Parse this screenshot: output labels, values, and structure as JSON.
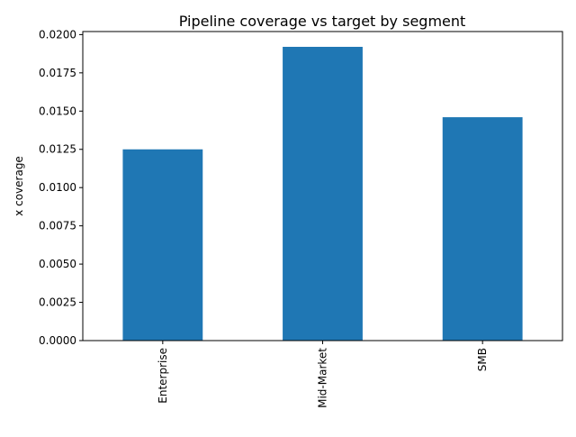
{
  "chart_data": {
    "type": "bar",
    "title": "Pipeline coverage vs target by segment",
    "xlabel": "",
    "ylabel": "x coverage",
    "categories": [
      "Enterprise",
      "Mid-Market",
      "SMB"
    ],
    "values": [
      0.0125,
      0.0192,
      0.0146
    ],
    "ylim": [
      0,
      0.0202
    ],
    "yticks": [
      0,
      0.0025,
      0.005,
      0.0075,
      0.01,
      0.0125,
      0.015,
      0.0175,
      0.02
    ],
    "ytick_labels": [
      "0.0000",
      "0.0025",
      "0.0050",
      "0.0075",
      "0.0100",
      "0.0125",
      "0.0150",
      "0.0175",
      "0.0200"
    ],
    "bar_color": "#1f77b4",
    "grid": false,
    "legend": "none"
  }
}
